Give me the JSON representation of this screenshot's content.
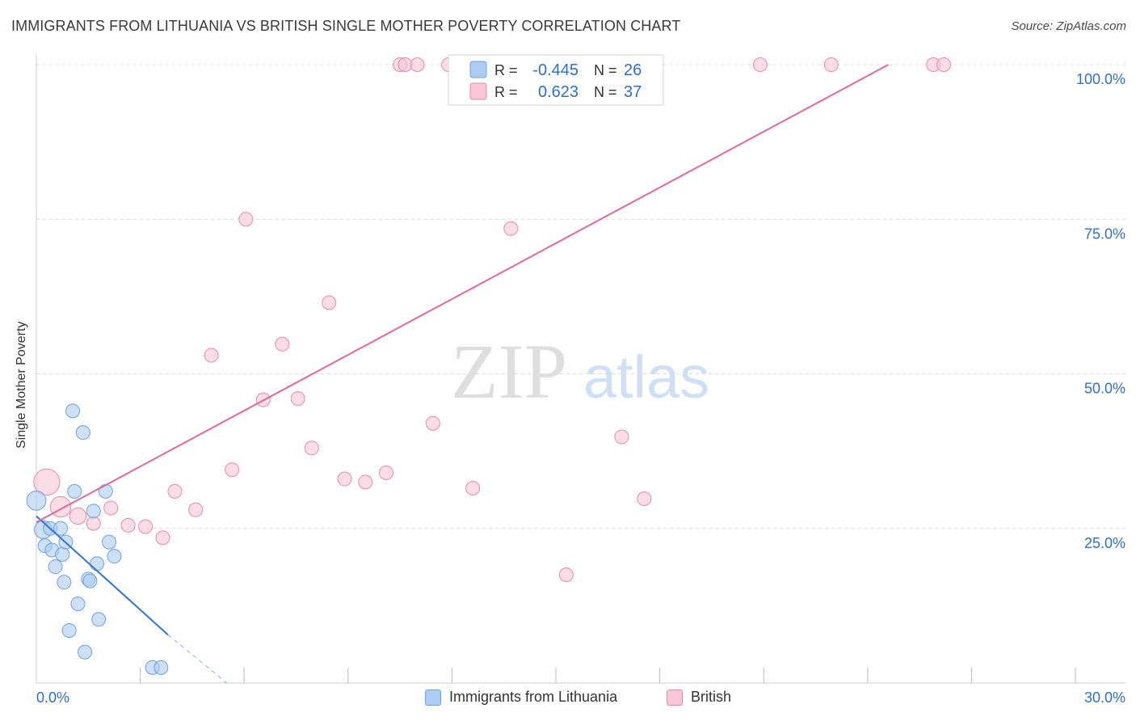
{
  "title": "IMMIGRANTS FROM LITHUANIA VS BRITISH SINGLE MOTHER POVERTY CORRELATION CHART",
  "source": "Source: ZipAtlas.com",
  "watermark": {
    "zip": "ZIP",
    "atlas": "atlas"
  },
  "legend_top": [
    {
      "r_label": "R =",
      "r_value": "-0.445",
      "n_label": "N =",
      "n_value": "26"
    },
    {
      "r_label": "R =",
      "r_value": "0.623",
      "n_label": "N =",
      "n_value": "37"
    }
  ],
  "legend_bottom": [
    "Immigrants from Lithuania",
    "British"
  ],
  "colors": {
    "blue_fill": "#aeccf3",
    "blue_stroke": "#6fa0dd",
    "blue_line": "#2f74d0",
    "pink_fill": "#f8c6d4",
    "pink_stroke": "#e98aa8",
    "pink_line": "#e0689a",
    "value_text": "#2f6fc8",
    "grid": "#d9d9d9"
  },
  "chart_data": {
    "type": "scatter",
    "title": "IMMIGRANTS FROM LITHUANIA VS BRITISH SINGLE MOTHER POVERTY CORRELATION CHART",
    "xlabel": "",
    "ylabel": "Single Mother Poverty",
    "xlim": [
      0,
      30
    ],
    "ylim": [
      0,
      100
    ],
    "x_tick_labels": [
      "0.0%",
      "30.0%"
    ],
    "y_tick_labels": [
      "25.0%",
      "50.0%",
      "75.0%",
      "100.0%"
    ],
    "y_ticks": [
      25,
      50,
      75,
      100
    ],
    "series": [
      {
        "name": "Immigrants from Lithuania",
        "color": "blue",
        "R": -0.445,
        "N": 26,
        "points": [
          {
            "x": 0.0,
            "y": 29.5,
            "s": 1.4
          },
          {
            "x": 0.2,
            "y": 24.8,
            "s": 1.3
          },
          {
            "x": 0.25,
            "y": 22.2,
            "s": 1
          },
          {
            "x": 0.4,
            "y": 25.0,
            "s": 1
          },
          {
            "x": 0.45,
            "y": 21.5,
            "s": 1
          },
          {
            "x": 0.55,
            "y": 18.8,
            "s": 1
          },
          {
            "x": 0.7,
            "y": 25.0,
            "s": 1
          },
          {
            "x": 0.75,
            "y": 20.8,
            "s": 1
          },
          {
            "x": 0.8,
            "y": 16.3,
            "s": 1
          },
          {
            "x": 0.85,
            "y": 22.8,
            "s": 1
          },
          {
            "x": 0.95,
            "y": 8.5,
            "s": 1
          },
          {
            "x": 1.05,
            "y": 44.0,
            "s": 1
          },
          {
            "x": 1.1,
            "y": 31.0,
            "s": 1
          },
          {
            "x": 1.2,
            "y": 12.8,
            "s": 1
          },
          {
            "x": 1.35,
            "y": 40.5,
            "s": 1
          },
          {
            "x": 1.4,
            "y": 5.0,
            "s": 1
          },
          {
            "x": 1.5,
            "y": 16.8,
            "s": 1
          },
          {
            "x": 1.55,
            "y": 16.5,
            "s": 1
          },
          {
            "x": 1.65,
            "y": 27.8,
            "s": 1
          },
          {
            "x": 1.75,
            "y": 19.3,
            "s": 1
          },
          {
            "x": 1.8,
            "y": 10.3,
            "s": 1
          },
          {
            "x": 2.0,
            "y": 31.0,
            "s": 1
          },
          {
            "x": 2.1,
            "y": 22.8,
            "s": 1
          },
          {
            "x": 2.25,
            "y": 20.5,
            "s": 1
          },
          {
            "x": 3.35,
            "y": 2.5,
            "s": 1
          },
          {
            "x": 3.6,
            "y": 2.5,
            "s": 1
          }
        ],
        "trend": {
          "x0": 0.0,
          "y0": 27.0,
          "x1": 3.8,
          "y1": 7.8,
          "dash_x1": 5.5,
          "dash_y1": 0.0
        }
      },
      {
        "name": "British",
        "color": "pink",
        "R": 0.623,
        "N": 37,
        "points": [
          {
            "x": 0.3,
            "y": 32.5,
            "s": 1.9
          },
          {
            "x": 0.7,
            "y": 28.5,
            "s": 1.5
          },
          {
            "x": 1.2,
            "y": 27.0,
            "s": 1.2
          },
          {
            "x": 1.65,
            "y": 25.8,
            "s": 1
          },
          {
            "x": 2.15,
            "y": 28.3,
            "s": 1
          },
          {
            "x": 2.65,
            "y": 25.5,
            "s": 1
          },
          {
            "x": 3.15,
            "y": 25.3,
            "s": 1
          },
          {
            "x": 3.65,
            "y": 23.5,
            "s": 1
          },
          {
            "x": 4.0,
            "y": 31.0,
            "s": 1
          },
          {
            "x": 4.6,
            "y": 28.0,
            "s": 1
          },
          {
            "x": 5.05,
            "y": 53.0,
            "s": 1
          },
          {
            "x": 5.65,
            "y": 34.5,
            "s": 1
          },
          {
            "x": 6.05,
            "y": 75.0,
            "s": 1
          },
          {
            "x": 6.55,
            "y": 45.8,
            "s": 1
          },
          {
            "x": 7.1,
            "y": 54.8,
            "s": 1
          },
          {
            "x": 7.55,
            "y": 46.0,
            "s": 1
          },
          {
            "x": 7.95,
            "y": 38.0,
            "s": 1
          },
          {
            "x": 8.45,
            "y": 61.5,
            "s": 1
          },
          {
            "x": 8.9,
            "y": 33.0,
            "s": 1
          },
          {
            "x": 9.5,
            "y": 32.5,
            "s": 1
          },
          {
            "x": 10.1,
            "y": 34.0,
            "s": 1
          },
          {
            "x": 10.5,
            "y": 100.0,
            "s": 1
          },
          {
            "x": 10.65,
            "y": 100.0,
            "s": 1
          },
          {
            "x": 11.0,
            "y": 100.0,
            "s": 1
          },
          {
            "x": 11.45,
            "y": 42.0,
            "s": 1
          },
          {
            "x": 11.9,
            "y": 100.0,
            "s": 1
          },
          {
            "x": 12.6,
            "y": 31.5,
            "s": 1
          },
          {
            "x": 13.5,
            "y": 100.0,
            "s": 1
          },
          {
            "x": 13.7,
            "y": 73.5,
            "s": 1
          },
          {
            "x": 14.2,
            "y": 100.0,
            "s": 1
          },
          {
            "x": 15.3,
            "y": 17.5,
            "s": 1
          },
          {
            "x": 16.9,
            "y": 39.8,
            "s": 1
          },
          {
            "x": 17.55,
            "y": 29.8,
            "s": 1
          },
          {
            "x": 20.9,
            "y": 100.0,
            "s": 1
          },
          {
            "x": 22.95,
            "y": 100.0,
            "s": 1
          },
          {
            "x": 25.9,
            "y": 100.0,
            "s": 1
          },
          {
            "x": 26.2,
            "y": 100.0,
            "s": 1
          }
        ],
        "trend": {
          "x0": 0.0,
          "y0": 26.0,
          "x1": 24.6,
          "y1": 100.0
        }
      }
    ]
  }
}
